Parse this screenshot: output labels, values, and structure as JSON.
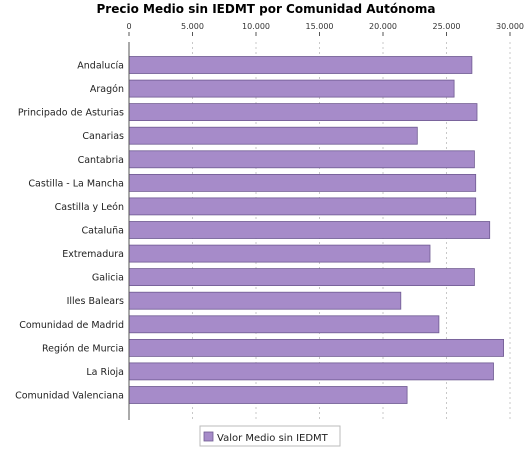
{
  "colors": {
    "bar_fill": "#a68bc9",
    "bar_stroke": "#6f5a91",
    "grid": "#c8c8c8",
    "axis": "#555555"
  },
  "chart_data": {
    "type": "bar",
    "orientation": "horizontal",
    "title": "Precio Medio sin IEDMT por Comunidad Autónoma",
    "xlabel": "",
    "ylabel": "",
    "xlim": [
      0,
      30000
    ],
    "x_ticks": [
      0,
      5000,
      10000,
      15000,
      20000,
      25000,
      30000
    ],
    "x_tick_labels": [
      "0",
      "5.000",
      "10.000",
      "15.000",
      "20.000",
      "25.000",
      "30.000"
    ],
    "grid": true,
    "legend_position": "bottom",
    "categories": [
      "Andalucía",
      "Aragón",
      "Principado de Asturias",
      "Canarias",
      "Cantabria",
      "Castilla - La Mancha",
      "Castilla y León",
      "Cataluña",
      "Extremadura",
      "Galicia",
      "Illes Balears",
      "Comunidad de Madrid",
      "Región de Murcia",
      "La Rioja",
      "Comunidad Valenciana"
    ],
    "series": [
      {
        "name": "Valor Medio sin IEDMT",
        "values": [
          27000,
          25600,
          27400,
          22700,
          27200,
          27300,
          27300,
          28400,
          23700,
          27200,
          21400,
          24400,
          29500,
          28700,
          21900
        ]
      }
    ]
  }
}
